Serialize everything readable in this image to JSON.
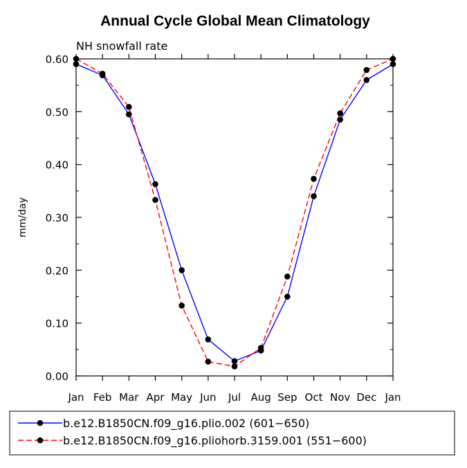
{
  "chart_data": {
    "type": "line",
    "title": "Annual Cycle Global Mean Climatology",
    "subtitle": "NH snowfall rate",
    "xlabel": "",
    "ylabel": "mm/day",
    "ylim": [
      0,
      0.6
    ],
    "yticks": [
      "0.00",
      "0.10",
      "0.20",
      "0.30",
      "0.40",
      "0.50",
      "0.60"
    ],
    "categories": [
      "Jan",
      "Feb",
      "Mar",
      "Apr",
      "May",
      "Jun",
      "Jul",
      "Aug",
      "Sep",
      "Oct",
      "Nov",
      "Dec",
      "Jan"
    ],
    "series": [
      {
        "name": "b.e12.B1850CN.f09_g16.plio.002 (601−650)",
        "color": "#0000ff",
        "style": "solid",
        "values": [
          0.59,
          0.569,
          0.495,
          0.363,
          0.2,
          0.069,
          0.028,
          0.048,
          0.15,
          0.34,
          0.485,
          0.56,
          0.59
        ]
      },
      {
        "name": "b.e12.B1850CN.f09_g16.pliohorb.3159.001 (551−600)",
        "color": "#ff0000",
        "style": "dashed",
        "values": [
          0.6,
          0.572,
          0.509,
          0.333,
          0.133,
          0.027,
          0.018,
          0.053,
          0.188,
          0.373,
          0.497,
          0.579,
          0.6
        ]
      }
    ]
  }
}
